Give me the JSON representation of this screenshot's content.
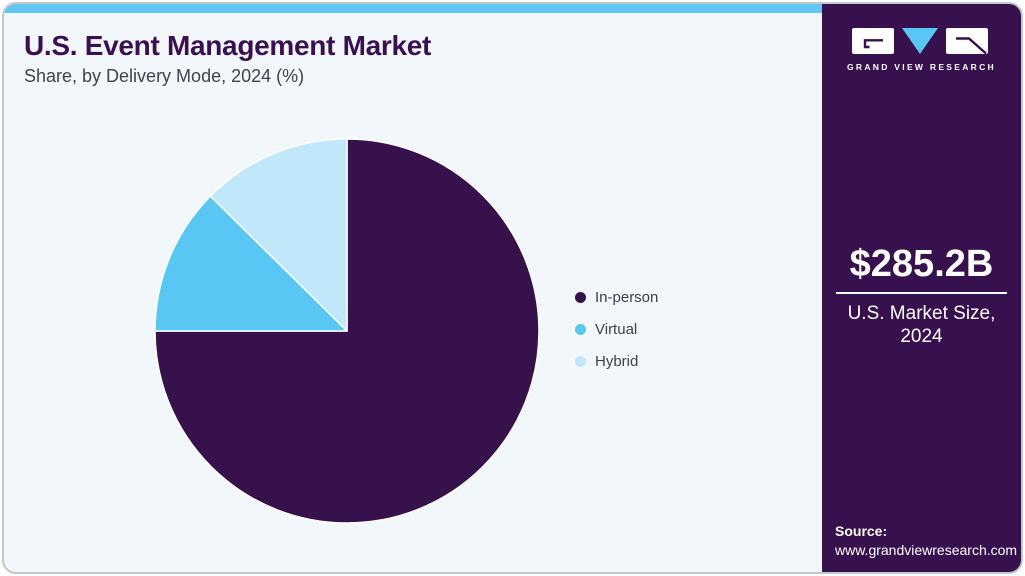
{
  "header": {
    "title": "U.S. Event Management Market",
    "subtitle": "Share, by Delivery Mode, 2024 (%)"
  },
  "sidebar": {
    "brand": "GRAND VIEW RESEARCH",
    "market_size": "$285.2B",
    "market_size_label_line1": "U.S. Market Size,",
    "market_size_label_line2": "2024",
    "source_label": "Source:",
    "source_url": "www.grandviewresearch.com"
  },
  "chart_data": {
    "type": "pie",
    "title": "U.S. Event Management Market Share, by Delivery Mode, 2024 (%)",
    "categories": [
      "In-person",
      "Virtual",
      "Hybrid"
    ],
    "values": [
      75.0,
      12.4,
      12.6
    ],
    "colors": [
      "#36114b",
      "#58c7f3",
      "#c1e8fa"
    ],
    "legend_position": "right",
    "start_angle_deg": 0,
    "direction": "clockwise"
  },
  "colors": {
    "accent_blue": "#61c7f2",
    "panel_purple": "#37114d",
    "title_purple": "#3a1052",
    "card_background": "#f2f7fb",
    "card_border": "#c2c8ce",
    "text_dark": "#3c414b",
    "white": "#ffffff"
  }
}
